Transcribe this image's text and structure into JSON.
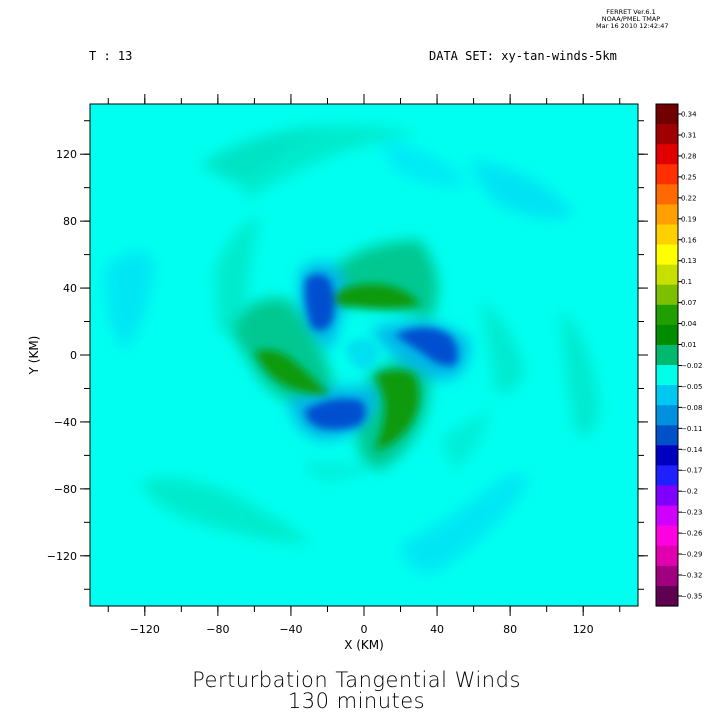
{
  "header": {
    "time_label": "T : 13",
    "dataset_label": "DATA SET: xy-tan-winds-5km",
    "stamp_line1": "FERRET  Ver.6.1",
    "stamp_line2": "NOAA/PMEL TMAP",
    "stamp_line3": "Mar 16 2010 12:42:47"
  },
  "chart_data": {
    "type": "heatmap",
    "title": "Perturbation Tangential Winds",
    "subtitle": "130 minutes",
    "xlabel": "X (KM)",
    "ylabel": "Y (KM)",
    "xlim": [
      -150,
      150
    ],
    "ylim": [
      -150,
      150
    ],
    "x_ticks": [
      -120,
      -80,
      -40,
      0,
      40,
      80,
      120
    ],
    "y_ticks": [
      120,
      80,
      40,
      0,
      -40,
      -80,
      -120
    ],
    "colorbar_ticks": [
      "0.34",
      "0.31",
      "0.28",
      "0.25",
      "0.22",
      "0.19",
      "0.16",
      "0.13",
      "0.1",
      "0.07",
      "0.04",
      "0.01",
      "-0.02",
      "-0.05",
      "-0.08",
      "-0.11",
      "-0.14",
      "-0.17",
      "-0.2",
      "-0.23",
      "-0.26",
      "-0.29",
      "-0.32",
      "-0.35"
    ],
    "colorbar_colors": [
      "#700000",
      "#a00000",
      "#e00000",
      "#ff3000",
      "#ff6a00",
      "#ffa000",
      "#ffd000",
      "#ffff00",
      "#c8e000",
      "#7cc000",
      "#20a000",
      "#008c00",
      "#00b870",
      "#00ffe8",
      "#00c8f0",
      "#0090e0",
      "#0050c8",
      "#0000c0",
      "#2020ff",
      "#8000ff",
      "#d000ff",
      "#ff00e0",
      "#e000b0",
      "#a00080",
      "#600050"
    ],
    "background_value": -0.005,
    "features": [
      {
        "kind": "positive_arm",
        "description": "green spiral arm",
        "x": 10,
        "y": 35,
        "peak": 0.08
      },
      {
        "kind": "positive_arm",
        "description": "green spiral arm",
        "x": -30,
        "y": -5,
        "peak": 0.08
      },
      {
        "kind": "positive_arm",
        "description": "green spiral arm",
        "x": 25,
        "y": -30,
        "peak": 0.08
      },
      {
        "kind": "negative_arm",
        "description": "blue spiral arm",
        "x": -25,
        "y": 30,
        "peak": -0.11
      },
      {
        "kind": "negative_arm",
        "description": "blue spiral arm",
        "x": 35,
        "y": 5,
        "peak": -0.11
      },
      {
        "kind": "negative_arm",
        "description": "blue spiral arm",
        "x": -15,
        "y": -35,
        "peak": -0.11
      }
    ]
  }
}
